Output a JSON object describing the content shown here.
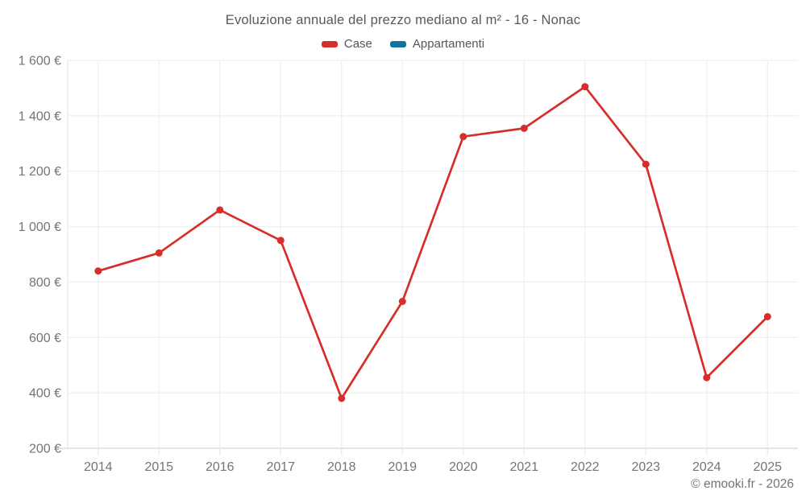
{
  "header": {
    "title": "Evoluzione annuale del prezzo mediano al m² - 16 - Nonac"
  },
  "legend": {
    "items": [
      {
        "label": "Case",
        "color": "#d62f2b"
      },
      {
        "label": "Appartamenti",
        "color": "#1272a2"
      }
    ]
  },
  "footer": {
    "text": "© emooki.fr - 2026"
  },
  "chart_data": {
    "type": "line",
    "title": "Evoluzione annuale del prezzo mediano al m² - 16 - Nonac",
    "categories": [
      "2014",
      "2015",
      "2016",
      "2017",
      "2018",
      "2019",
      "2020",
      "2021",
      "2022",
      "2023",
      "2024",
      "2025"
    ],
    "series": [
      {
        "name": "Case",
        "color": "#d62f2b",
        "values": [
          840,
          905,
          1060,
          950,
          380,
          730,
          1325,
          1355,
          1505,
          1225,
          455,
          675
        ]
      },
      {
        "name": "Appartamenti",
        "color": "#1272a2",
        "values": []
      }
    ],
    "xlabel": "",
    "ylabel": "",
    "ylim": [
      200,
      1600
    ],
    "y_ticks": [
      {
        "value": 200,
        "label": "200 €"
      },
      {
        "value": 400,
        "label": "400 €"
      },
      {
        "value": 600,
        "label": "600 €"
      },
      {
        "value": 800,
        "label": "800 €"
      },
      {
        "value": 1000,
        "label": "1 000 €"
      },
      {
        "value": 1200,
        "label": "1 200 €"
      },
      {
        "value": 1400,
        "label": "1 400 €"
      },
      {
        "value": 1600,
        "label": "1 600 €"
      }
    ],
    "grid": true,
    "legend_position": "top",
    "marker": "circle"
  }
}
